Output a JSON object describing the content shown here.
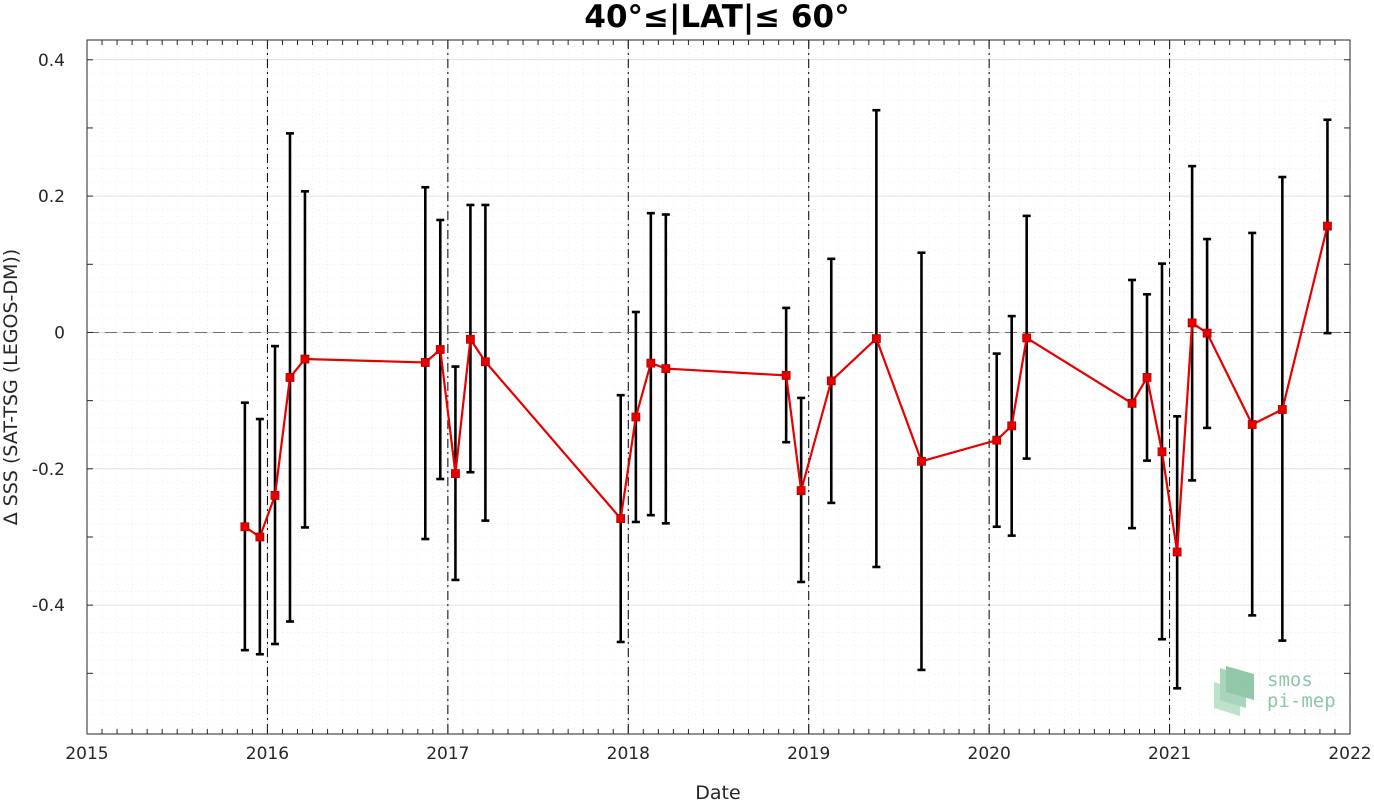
{
  "chart_data": {
    "type": "line",
    "title": "40°≤|LAT|≤ 60°",
    "xlabel": "Date",
    "ylabel": "Δ SSS (SAT-TSG (LEGOS-DM))",
    "xlim": [
      2015,
      2022
    ],
    "ylim": [
      -0.589,
      0.429
    ],
    "x_ticks": [
      "2015",
      "2016",
      "2017",
      "2018",
      "2019",
      "2020",
      "2021",
      "2022"
    ],
    "y_ticks": [
      {
        "value": 0.4,
        "label": "0.4"
      },
      {
        "value": 0.2,
        "label": "0.2"
      },
      {
        "value": 0,
        "label": "0"
      },
      {
        "value": -0.2,
        "label": "-0.2"
      },
      {
        "value": -0.4,
        "label": "-0.4"
      }
    ],
    "grid": true,
    "year_boundaries": [
      2016,
      2017,
      2018,
      2019,
      2020,
      2021
    ],
    "zero_line": 0,
    "line_color": "#e60000",
    "errorbar_color": "#000000",
    "series": [
      {
        "x": [
          2015.875,
          2015.958,
          2016.042,
          2016.125,
          2016.208,
          2016.875,
          2016.958,
          2017.042,
          2017.125,
          2017.208,
          2017.958,
          2018.042,
          2018.125,
          2018.208,
          2018.875,
          2018.958,
          2019.125,
          2019.375,
          2019.625,
          2020.042,
          2020.125,
          2020.208,
          2020.792,
          2020.875,
          2020.958,
          2021.042,
          2021.125,
          2021.208,
          2021.458,
          2021.625,
          2021.875
        ],
        "y": [
          -0.285,
          -0.3,
          -0.239,
          -0.066,
          -0.039,
          -0.044,
          -0.025,
          -0.207,
          -0.01,
          -0.043,
          -0.273,
          -0.124,
          -0.045,
          -0.053,
          -0.063,
          -0.232,
          -0.071,
          -0.009,
          -0.189,
          -0.158,
          -0.137,
          -0.008,
          -0.104,
          -0.066,
          -0.175,
          -0.322,
          0.014,
          -0.001,
          -0.135,
          -0.113,
          0.156
        ],
        "y_low": [
          -0.466,
          -0.472,
          -0.457,
          -0.424,
          -0.286,
          -0.303,
          -0.215,
          -0.363,
          -0.205,
          -0.276,
          -0.454,
          -0.278,
          -0.268,
          -0.28,
          -0.161,
          -0.366,
          -0.25,
          -0.344,
          -0.495,
          -0.285,
          -0.298,
          -0.185,
          -0.287,
          -0.188,
          -0.45,
          -0.522,
          -0.217,
          -0.14,
          -0.415,
          -0.452,
          -0.001
        ],
        "y_high": [
          -0.103,
          -0.127,
          -0.02,
          0.292,
          0.207,
          0.213,
          0.165,
          -0.05,
          0.187,
          0.187,
          -0.092,
          0.03,
          0.175,
          0.173,
          0.036,
          -0.096,
          0.108,
          0.326,
          0.117,
          -0.031,
          0.024,
          0.171,
          0.077,
          0.056,
          0.101,
          -0.123,
          0.244,
          0.137,
          0.146,
          0.228,
          0.312
        ]
      }
    ]
  },
  "logo": {
    "line1": "smos",
    "line2": "pi-mep",
    "color": "#8cc7a6"
  }
}
